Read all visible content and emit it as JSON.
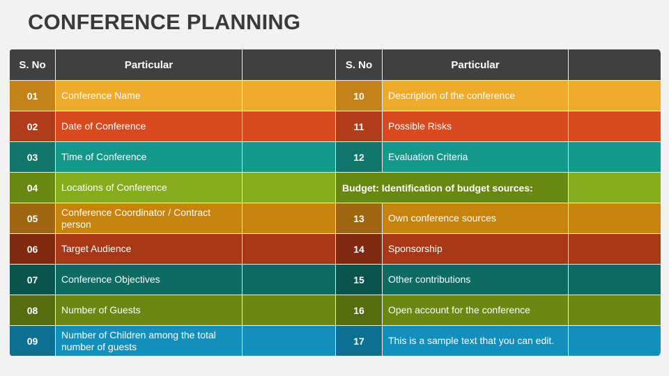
{
  "title": "CONFERENCE PLANNING",
  "headers": {
    "sno": "S. No",
    "particular": "Particular"
  },
  "colors": {
    "header": "#404040",
    "rows": [
      {
        "main": "#efab2b",
        "dark": "#c4831a"
      },
      {
        "main": "#d94b1f",
        "dark": "#b03c1a"
      },
      {
        "main": "#14988c",
        "dark": "#11756c"
      },
      {
        "main": "#86ac1b",
        "dark": "#698812"
      },
      {
        "main": "#c6840f",
        "dark": "#9e6610"
      },
      {
        "main": "#a63818",
        "dark": "#812910"
      },
      {
        "main": "#0e6b63",
        "dark": "#0a544d"
      },
      {
        "main": "#6c8814",
        "dark": "#556c0f"
      },
      {
        "main": "#128fba",
        "dark": "#0e6f93"
      }
    ]
  },
  "rows": [
    {
      "left_no": "01",
      "left_text": "Conference Name",
      "right_no": "10",
      "right_text": "Description of the conference"
    },
    {
      "left_no": "02",
      "left_text": "Date of Conference",
      "right_no": "11",
      "right_text": "Possible Risks"
    },
    {
      "left_no": "03",
      "left_text": "Time of Conference",
      "right_no": "12",
      "right_text": "Evaluation Criteria"
    },
    {
      "left_no": "04",
      "left_text": "Locations of Conference",
      "right_no": "",
      "right_text": "Budget: Identification of budget sources:"
    },
    {
      "left_no": "05",
      "left_text": "Conference Coordinator / Contract person",
      "right_no": "13",
      "right_text": "Own conference sources"
    },
    {
      "left_no": "06",
      "left_text": "Target Audience",
      "right_no": "14",
      "right_text": "Sponsorship"
    },
    {
      "left_no": "07",
      "left_text": "Conference Objectives",
      "right_no": "15",
      "right_text": "Other contributions"
    },
    {
      "left_no": "08",
      "left_text": "Number of Guests",
      "right_no": "16",
      "right_text": "Open account for the conference"
    },
    {
      "left_no": "09",
      "left_text": "Number of Children among the total number of guests",
      "right_no": "17",
      "right_text": "This is a sample text that you can edit."
    }
  ]
}
